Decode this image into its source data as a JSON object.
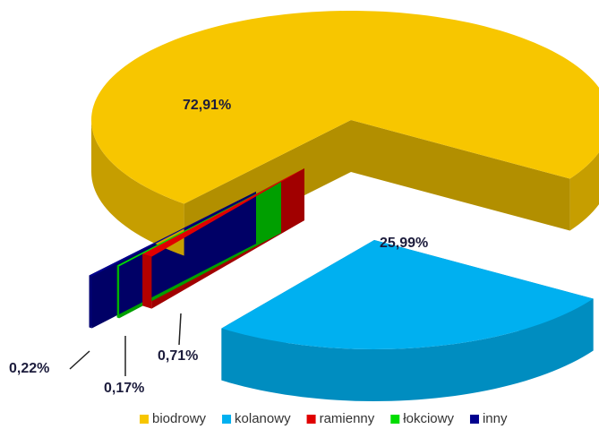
{
  "chart_data": {
    "type": "pie3d",
    "categories": [
      "biodrowy",
      "kolanowy",
      "ramienny",
      "łokciowy",
      "inny"
    ],
    "values": [
      72.91,
      25.99,
      0.71,
      0.17,
      0.22
    ],
    "value_labels": [
      "72,91%",
      "25,99%",
      "0,71%",
      "0,17%",
      "0,22%"
    ],
    "colors": [
      "#f7c600",
      "#00b0f0",
      "#e00000",
      "#00dd00",
      "#00008e"
    ],
    "legend": "bottom"
  }
}
